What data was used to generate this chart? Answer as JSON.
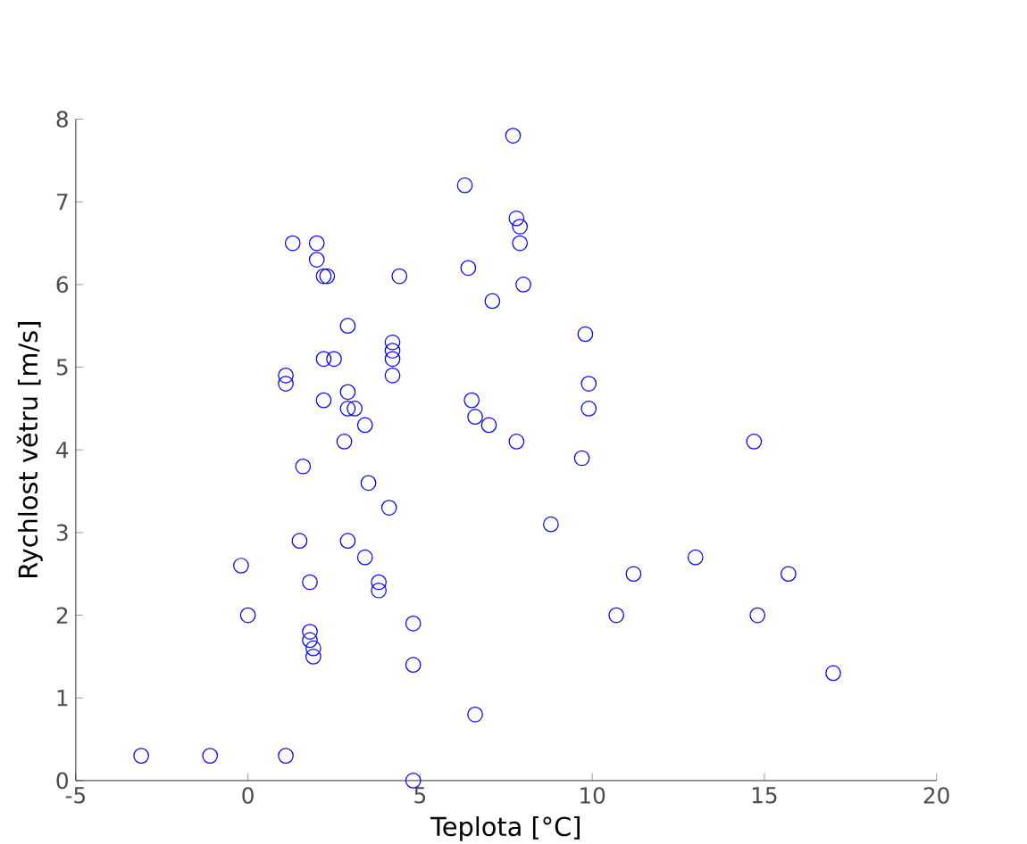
{
  "chart_data": {
    "type": "scatter",
    "xlabel": "Teplota [°C]",
    "ylabel": "Rychlost větru [m/s]",
    "marker": "circle",
    "color": "#0000ff",
    "grid": false,
    "x": [
      -3.1,
      -1.1,
      1.1,
      4.8,
      6.6,
      4.8,
      4.8,
      -0.2,
      0,
      1.9,
      1.9,
      1.8,
      1.8,
      1.8,
      1.5,
      2.9,
      3.4,
      3.8,
      3.8,
      4.1,
      3.5,
      1.6,
      2.8,
      3.4,
      2.2,
      2.9,
      3.1,
      2.9,
      1.1,
      1.1,
      2.2,
      2.5,
      2.9,
      4.2,
      4.2,
      4.2,
      4.2,
      1.3,
      2.0,
      2.0,
      2.2,
      2.3,
      4.4,
      6.3,
      6.4,
      7.1,
      7.7,
      7.8,
      7.9,
      7.9,
      8.0,
      6.5,
      6.6,
      7.0,
      7.8,
      9.8,
      9.9,
      9.9,
      9.7,
      8.8,
      10.7,
      11.2,
      13.0,
      14.7,
      14.8,
      15.7,
      17.0
    ],
    "values": [
      0.3,
      0.3,
      0.3,
      0,
      0.8,
      1.4,
      1.9,
      2.6,
      2.0,
      1.5,
      1.6,
      1.7,
      1.8,
      2.4,
      2.9,
      2.9,
      2.7,
      2.3,
      2.4,
      3.3,
      3.6,
      3.8,
      4.1,
      4.3,
      4.6,
      4.5,
      4.5,
      4.7,
      4.8,
      4.9,
      5.1,
      5.1,
      5.5,
      4.9,
      5.1,
      5.2,
      5.3,
      6.5,
      6.5,
      6.3,
      6.1,
      6.1,
      6.1,
      7.2,
      6.2,
      5.8,
      7.8,
      6.8,
      6.7,
      6.5,
      6.0,
      4.6,
      4.4,
      4.3,
      4.1,
      5.4,
      4.8,
      4.5,
      3.9,
      3.1,
      2.0,
      2.5,
      2.7,
      4.1,
      2.0,
      2.5,
      1.3
    ],
    "xlim": [
      -5,
      20
    ],
    "xticks": [
      -5,
      0,
      5,
      10,
      15,
      20
    ],
    "ylim": [
      0,
      8
    ],
    "yticks": [
      0,
      1,
      2,
      3,
      4,
      5,
      6,
      7,
      8
    ]
  }
}
